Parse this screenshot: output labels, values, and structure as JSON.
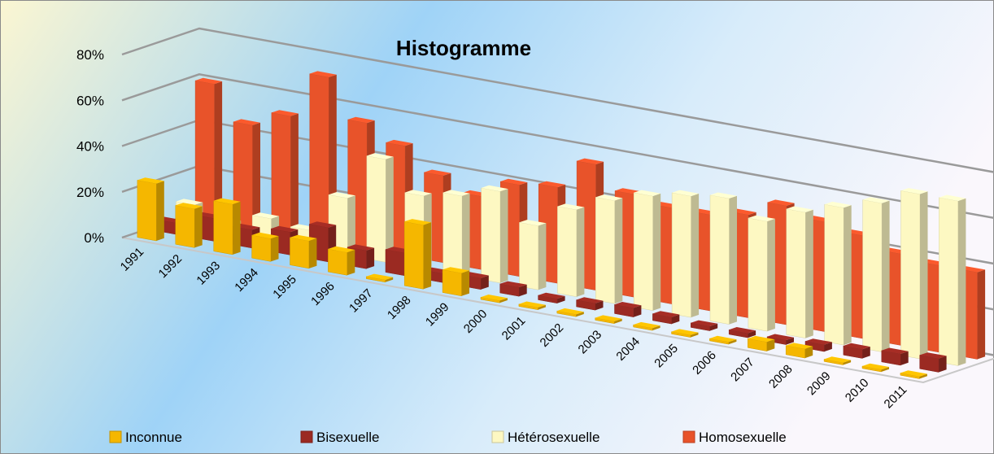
{
  "chart_data": {
    "type": "bar3d",
    "title": "Histogramme",
    "categories": [
      "1991",
      "1992",
      "1993",
      "1994",
      "1995",
      "1996",
      "1997",
      "1998",
      "1999",
      "2000",
      "2001",
      "2002",
      "2003",
      "2004",
      "2005",
      "2006",
      "2007",
      "2008",
      "2009",
      "2010",
      "2011"
    ],
    "series": [
      {
        "name": "Inconnue",
        "color": "#f5b700",
        "values": [
          25,
          17,
          22,
          10,
          12,
          10,
          1,
          28,
          10,
          1,
          1,
          1,
          1,
          1,
          1,
          1,
          4,
          4,
          1,
          1,
          1
        ]
      },
      {
        "name": "Bisexuelle",
        "color": "#9b2a22",
        "values": [
          5,
          10,
          8,
          10,
          15,
          8,
          10,
          4,
          5,
          4,
          2,
          3,
          4,
          3,
          2,
          2,
          2,
          3,
          4,
          5,
          6
        ]
      },
      {
        "name": "Hétérosexuelle",
        "color": "#fdf8c2",
        "values": [
          10,
          5,
          10,
          8,
          25,
          45,
          32,
          35,
          40,
          28,
          38,
          45,
          50,
          53,
          55,
          48,
          55,
          60,
          65,
          72,
          72
        ]
      },
      {
        "name": "Homosexuelle",
        "color": "#e8532a",
        "values": [
          60,
          45,
          52,
          72,
          55,
          48,
          38,
          32,
          40,
          42,
          55,
          45,
          42,
          42,
          45,
          52,
          48,
          45,
          40,
          38,
          38
        ]
      }
    ],
    "ylim": [
      0,
      80
    ],
    "yticks": [
      {
        "value": 0,
        "label": "0%"
      },
      {
        "value": 20,
        "label": "20%"
      },
      {
        "value": 40,
        "label": "40%"
      },
      {
        "value": 60,
        "label": "60%"
      },
      {
        "value": 80,
        "label": "80%"
      }
    ],
    "grid": true
  }
}
